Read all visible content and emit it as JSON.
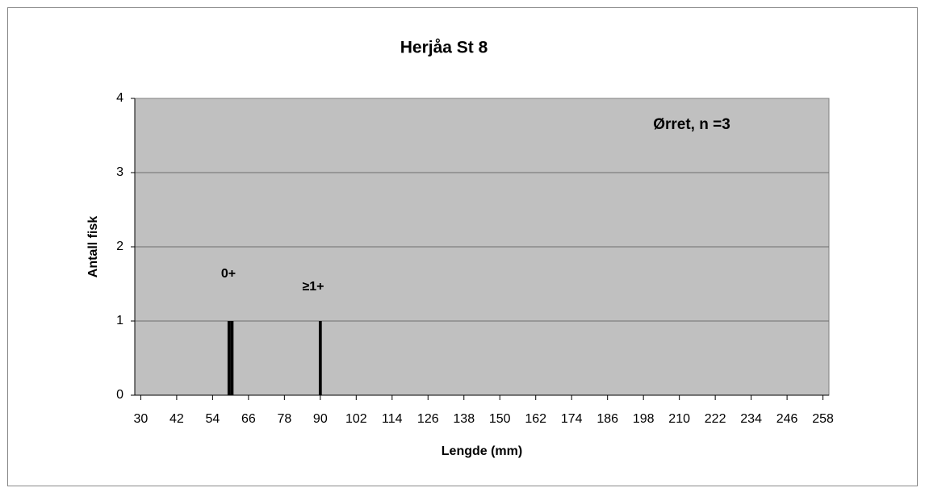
{
  "chart_data": {
    "type": "bar",
    "title": "Herjåa St 8",
    "x_label": "Lengde (mm)",
    "y_label": "Antall fisk",
    "annotations": [
      "0+",
      "≥1+",
      "Ørret, n =3"
    ],
    "x": [
      59.5,
      60.5,
      90
    ],
    "values": [
      1,
      1,
      1
    ],
    "color": "#000000",
    "xlim": [
      28,
      260
    ],
    "xticks": [
      30,
      42,
      54,
      66,
      78,
      90,
      102,
      114,
      126,
      138,
      150,
      162,
      174,
      186,
      198,
      210,
      222,
      234,
      246,
      258
    ],
    "ylim": [
      0,
      4
    ],
    "yticks": [
      0,
      1,
      2,
      3,
      4
    ],
    "grid": true
  }
}
